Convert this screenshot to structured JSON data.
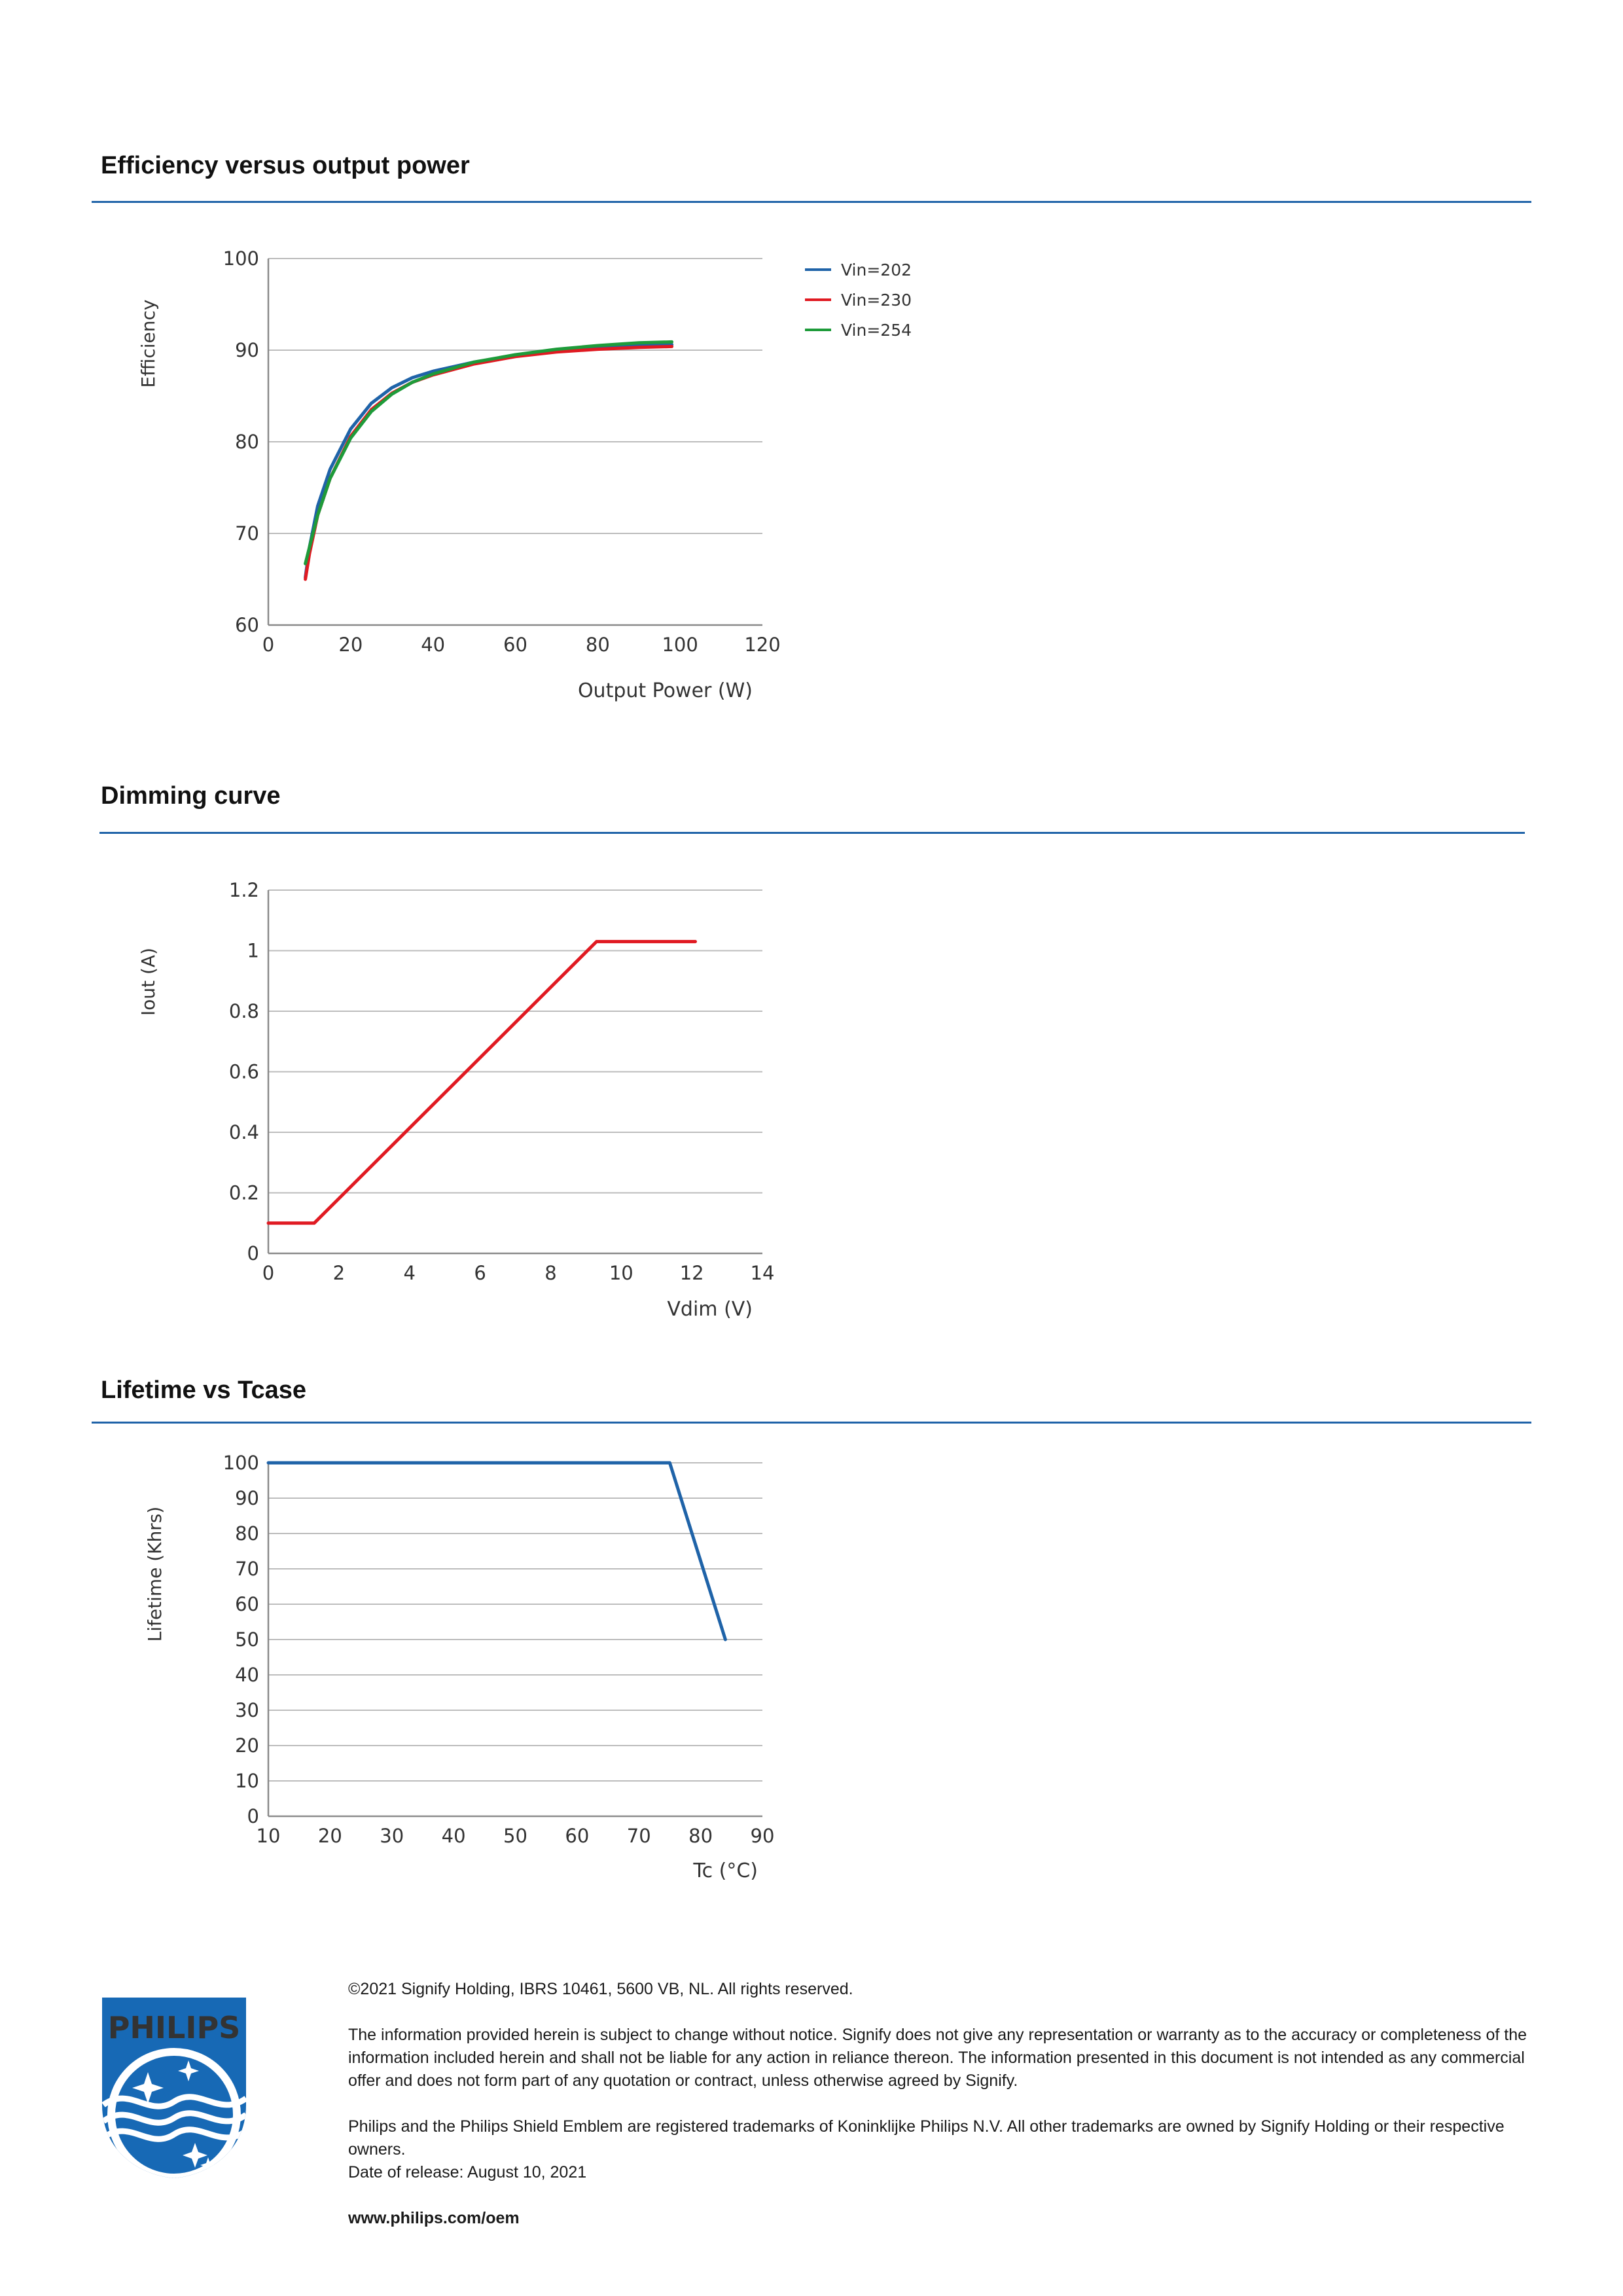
{
  "sections": [
    {
      "title": "Efficiency versus output power"
    },
    {
      "title": "Dimming curve"
    },
    {
      "title": "Lifetime vs Tcase"
    }
  ],
  "chart_data": [
    {
      "type": "line",
      "title": "Efficiency versus output power",
      "xlabel": "Output Power (W)",
      "ylabel": "Efficiency",
      "xlim": [
        0,
        120
      ],
      "ylim": [
        60,
        100
      ],
      "xticks": [
        "0",
        "20",
        "40",
        "60",
        "80",
        "100",
        "120"
      ],
      "yticks": [
        "60",
        "70",
        "80",
        "90",
        "100"
      ],
      "grid": "horizontal",
      "legend_position": "right",
      "series": [
        {
          "name": "Vin=202",
          "color": "#1f63a8",
          "x": [
            9,
            10,
            12,
            15,
            20,
            25,
            30,
            35,
            40,
            50,
            60,
            70,
            80,
            90,
            98
          ],
          "y": [
            65.2,
            68.5,
            73,
            77,
            81.4,
            84.2,
            85.9,
            87,
            87.7,
            88.7,
            89.4,
            89.9,
            90.3,
            90.5,
            90.6
          ]
        },
        {
          "name": "Vin=230",
          "color": "#e01a22",
          "x": [
            9,
            10,
            12,
            15,
            20,
            25,
            30,
            35,
            40,
            50,
            60,
            70,
            80,
            90,
            98
          ],
          "y": [
            65,
            67.8,
            72,
            76,
            80.6,
            83.5,
            85.3,
            86.5,
            87.3,
            88.5,
            89.3,
            89.8,
            90.1,
            90.3,
            90.4
          ]
        },
        {
          "name": "Vin=254",
          "color": "#1e9b3a",
          "x": [
            9,
            10,
            12,
            15,
            20,
            25,
            30,
            35,
            40,
            50,
            60,
            70,
            80,
            90,
            98
          ],
          "y": [
            66.7,
            68.5,
            72,
            76,
            80.4,
            83.3,
            85.2,
            86.5,
            87.4,
            88.7,
            89.5,
            90.1,
            90.5,
            90.8,
            90.9
          ]
        }
      ]
    },
    {
      "type": "line",
      "title": "Dimming curve",
      "xlabel": "Vdim (V)",
      "ylabel": "Iout (A)",
      "xlim": [
        0,
        14
      ],
      "ylim": [
        0,
        1.2
      ],
      "xticks": [
        "0",
        "2",
        "4",
        "6",
        "8",
        "10",
        "12",
        "14"
      ],
      "yticks": [
        "0",
        "0.2",
        "0.4",
        "0.6",
        "0.8",
        "1",
        "1.2"
      ],
      "grid": "horizontal",
      "series": [
        {
          "color": "#e01a22",
          "x": [
            0,
            1.3,
            9.3,
            12.1
          ],
          "y": [
            0.1,
            0.1,
            1.03,
            1.03
          ]
        }
      ]
    },
    {
      "type": "line",
      "title": "Lifetime vs Tcase",
      "xlabel": "Tc (°C)",
      "ylabel": "Lifetime (Khrs)",
      "xlim": [
        10,
        90
      ],
      "ylim": [
        0,
        100
      ],
      "xticks": [
        "10",
        "20",
        "30",
        "40",
        "50",
        "60",
        "70",
        "80",
        "90"
      ],
      "yticks": [
        "0",
        "10",
        "20",
        "30",
        "40",
        "50",
        "60",
        "70",
        "80",
        "90",
        "100"
      ],
      "grid": "horizontal",
      "series": [
        {
          "color": "#1f63a8",
          "x": [
            10,
            75,
            84
          ],
          "y": [
            100,
            100,
            50
          ]
        }
      ]
    }
  ],
  "footer": {
    "copyright": "©2021 Signify Holding, IBRS 10461, 5600 VB, NL. All rights reserved.",
    "disclaimer": "The information provided herein is subject to change without notice. Signify does not give any representation or warranty as to the accuracy or completeness of the information included herein and shall not be liable for any action in reliance thereon. The information presented in this document is not intended as any commercial offer and does not form part of any quotation or contract, unless otherwise agreed by Signify.",
    "trademarks": "Philips and the Philips Shield Emblem are registered trademarks of Koninklijke Philips N.V. All other trademarks are owned by Signify Holding or their respective owners.",
    "release_date": "Date of release: August 10, 2021",
    "website": "www.philips.com/oem"
  },
  "logo": {
    "text": "PHILIPS",
    "color": "#1769b5",
    "icon": "philips-shield-icon"
  }
}
